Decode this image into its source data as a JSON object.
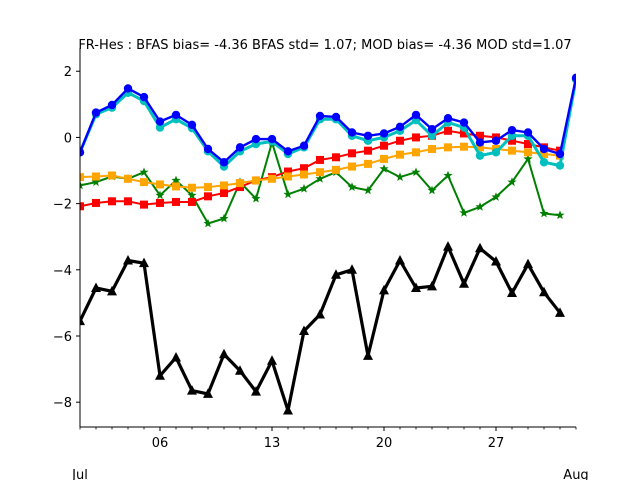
{
  "chart_data": {
    "type": "line",
    "title": "FR-Hes   : BFAS bias= -4.36 BFAS std= 1.07; MOD bias= -4.36 MOD std=1.07",
    "xlabel": "",
    "ylabel": "",
    "x_tick_labels": [
      "06",
      "13",
      "20",
      "27"
    ],
    "x_tick_days": [
      6,
      13,
      20,
      27
    ],
    "x_secondary_labels": [
      "Jul",
      "Aug"
    ],
    "x_secondary_days": [
      1,
      32
    ],
    "xlim": [
      1,
      32
    ],
    "ylim": [
      -8.75,
      2.4
    ],
    "y_ticks": [
      2,
      0,
      -2,
      -4,
      -6,
      -8
    ],
    "y_tick_labels": [
      "2",
      "0",
      "−2",
      "−4",
      "−6",
      "−8"
    ],
    "grid": false,
    "legend": "none",
    "x": [
      1,
      2,
      3,
      4,
      5,
      6,
      7,
      8,
      9,
      10,
      11,
      12,
      13,
      14,
      15,
      16,
      17,
      18,
      19,
      20,
      21,
      22,
      23,
      24,
      25,
      26,
      27,
      28,
      29,
      30,
      31,
      32
    ],
    "series": [
      {
        "color": "#000000",
        "marker": "triangle",
        "linewidth": 3.2,
        "values": [
          -5.55,
          -4.55,
          -4.65,
          -3.72,
          -3.8,
          -7.2,
          -6.65,
          -7.65,
          -7.75,
          -6.55,
          -7.05,
          -7.68,
          -6.75,
          -8.25,
          -5.85,
          -5.35,
          -4.15,
          -4.0,
          -6.6,
          -4.62,
          -3.72,
          -4.55,
          -4.5,
          -3.3,
          -4.42,
          -3.35,
          -3.75,
          -4.7,
          -3.83,
          -4.68,
          -5.3,
          null
        ]
      },
      {
        "color": "#008000",
        "marker": "star",
        "linewidth": 2,
        "values": [
          -1.45,
          -1.35,
          -1.18,
          -1.25,
          -1.05,
          -1.75,
          -1.3,
          -1.75,
          -2.6,
          -2.45,
          -1.35,
          -1.85,
          -0.15,
          -1.72,
          -1.55,
          -1.25,
          -1.05,
          -1.5,
          -1.6,
          -0.95,
          -1.2,
          -1.05,
          -1.6,
          -1.15,
          -2.28,
          -2.1,
          -1.8,
          -1.35,
          -0.65,
          -2.3,
          -2.35,
          null
        ]
      },
      {
        "color": "#ff0000",
        "marker": "square",
        "linewidth": 2,
        "values": [
          -2.08,
          -1.98,
          -1.93,
          -1.93,
          -2.03,
          -1.98,
          -1.95,
          -1.95,
          -1.78,
          -1.68,
          -1.5,
          -1.3,
          -1.2,
          -1.03,
          -0.93,
          -0.68,
          -0.6,
          -0.48,
          -0.4,
          -0.25,
          -0.1,
          0.0,
          0.05,
          0.2,
          0.12,
          0.05,
          0.0,
          -0.1,
          -0.2,
          -0.3,
          -0.4,
          null
        ]
      },
      {
        "color": "#ffa500",
        "marker": "square",
        "linewidth": 2,
        "values": [
          -1.2,
          -1.18,
          -1.15,
          -1.25,
          -1.35,
          -1.42,
          -1.48,
          -1.52,
          -1.5,
          -1.45,
          -1.38,
          -1.3,
          -1.25,
          -1.18,
          -1.12,
          -1.05,
          -0.98,
          -0.88,
          -0.8,
          -0.65,
          -0.52,
          -0.45,
          -0.35,
          -0.3,
          -0.28,
          -0.3,
          -0.35,
          -0.4,
          -0.45,
          -0.5,
          -0.55,
          null
        ]
      },
      {
        "color": "#00bfbf",
        "marker": "circle",
        "linewidth": 3,
        "values": [
          -0.45,
          0.7,
          0.9,
          1.35,
          1.1,
          0.3,
          0.55,
          0.28,
          -0.42,
          -0.88,
          -0.42,
          -0.2,
          -0.12,
          -0.5,
          -0.3,
          0.55,
          0.55,
          0.05,
          -0.1,
          0.0,
          0.2,
          0.52,
          0.05,
          0.45,
          0.3,
          -0.55,
          -0.45,
          0.05,
          0.05,
          -0.75,
          -0.85,
          1.75
        ]
      },
      {
        "color": "#0000ff",
        "marker": "circle",
        "linewidth": 2.4,
        "values": [
          -0.45,
          0.75,
          0.98,
          1.48,
          1.22,
          0.48,
          0.68,
          0.38,
          -0.35,
          -0.75,
          -0.3,
          -0.05,
          -0.05,
          -0.42,
          -0.25,
          0.65,
          0.62,
          0.15,
          0.05,
          0.12,
          0.32,
          0.68,
          0.25,
          0.58,
          0.45,
          -0.15,
          -0.1,
          0.22,
          0.15,
          -0.35,
          -0.5,
          1.8
        ]
      }
    ]
  }
}
